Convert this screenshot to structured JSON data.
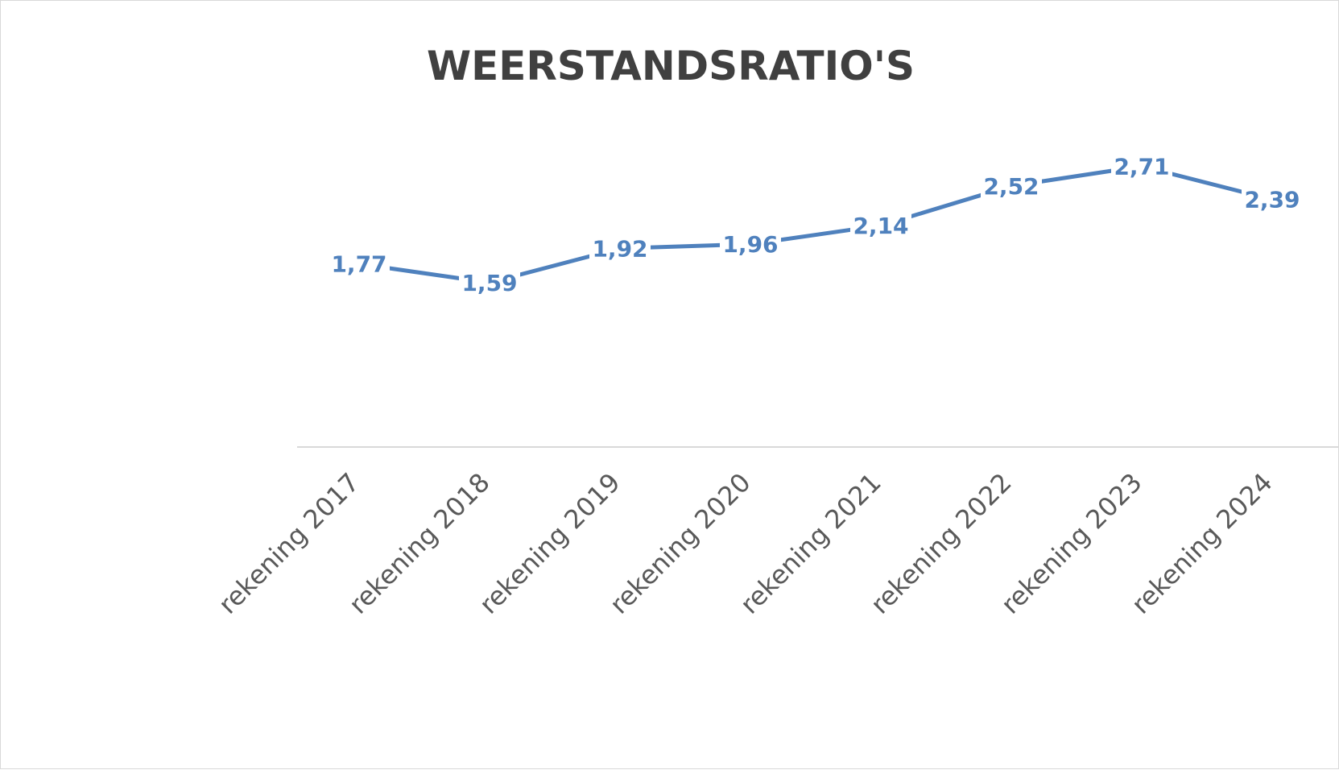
{
  "chart_data": {
    "type": "line",
    "title": "WEERSTANDSRATIO'S",
    "categories": [
      "rekening 2017",
      "rekening 2018",
      "rekening 2019",
      "rekening 2020",
      "rekening 2021",
      "rekening 2022",
      "rekening 2023",
      "rekening 2024"
    ],
    "series": [
      {
        "values": [
          1.77,
          1.59,
          1.92,
          1.96,
          2.14,
          2.52,
          2.71,
          2.39
        ],
        "labels": [
          "1,77",
          "1,59",
          "1,92",
          "1,96",
          "2,14",
          "2,52",
          "2,71",
          "2,39"
        ],
        "color": "#4f81bd"
      }
    ],
    "axis_color": "#d9d9d9",
    "grid": false,
    "legend": false,
    "y_axis_visible": false,
    "data_labels": true
  }
}
